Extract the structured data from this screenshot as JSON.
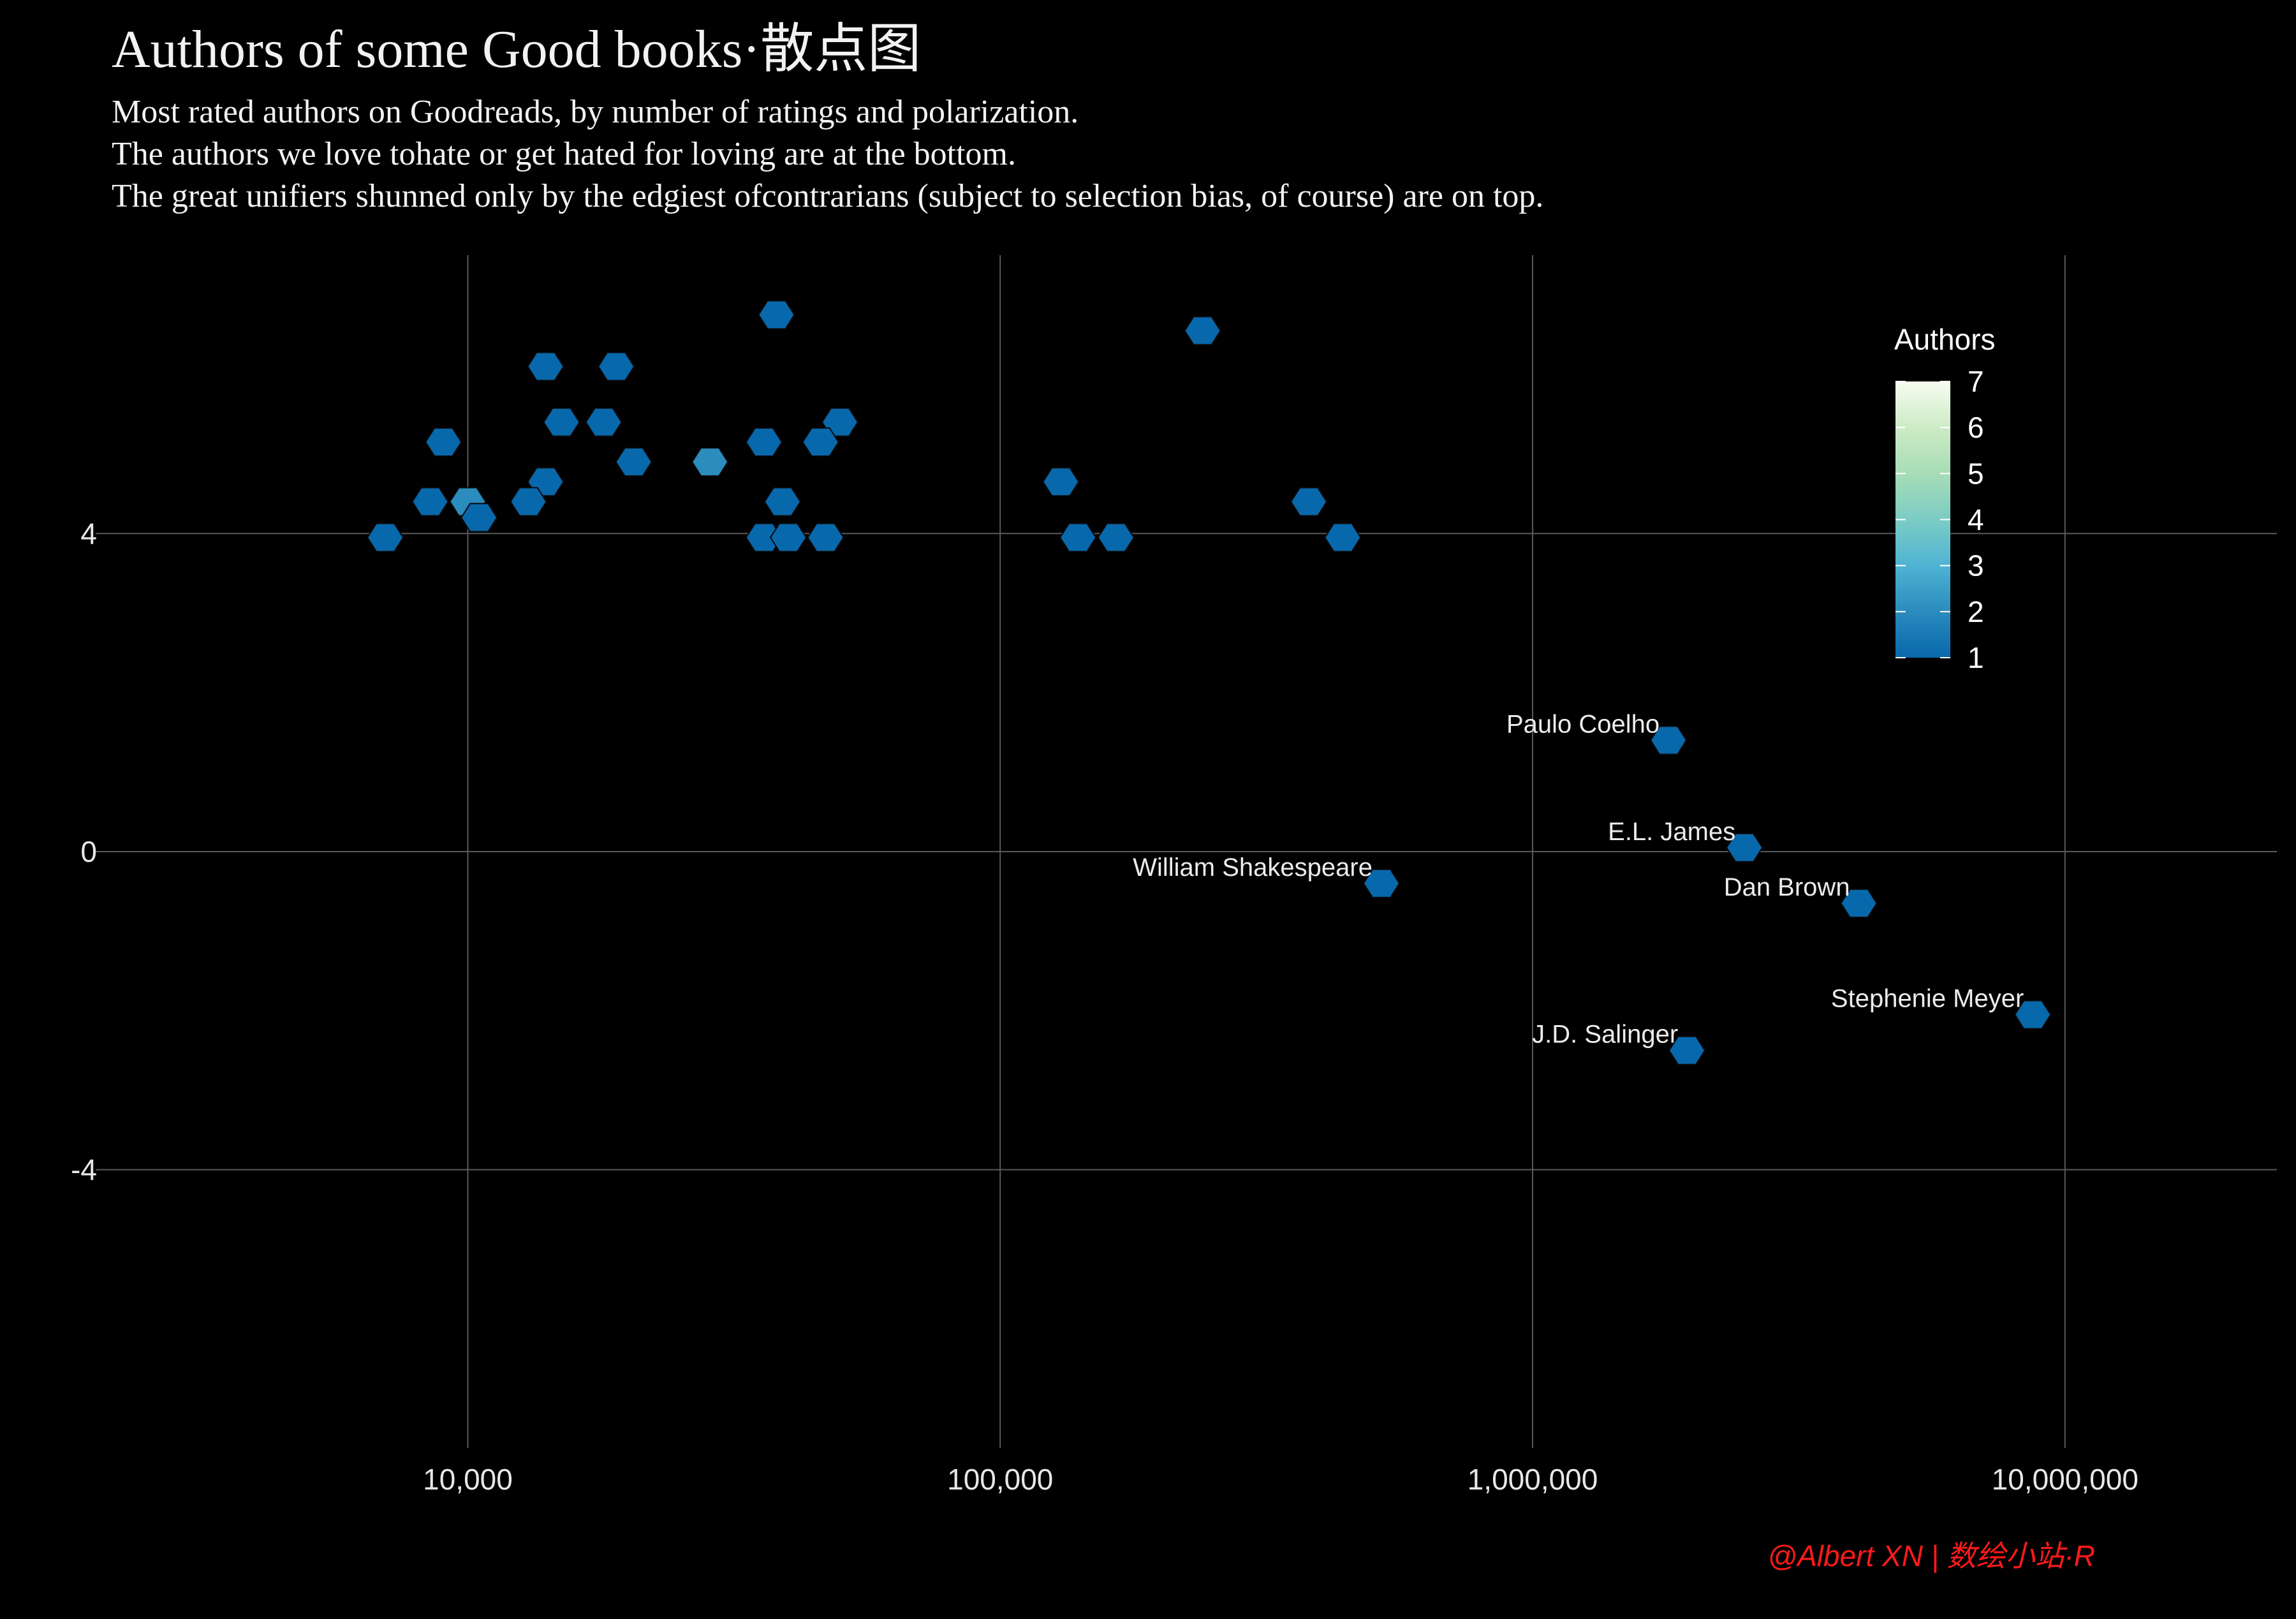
{
  "chart_data": {
    "type": "hexbin",
    "title": "Authors of some Good books·散点图",
    "subtitle": [
      "Most rated authors on Goodreads, by number of ratings and polarization.",
      "The authors we love tohate or get hated for loving are at the bottom.",
      "The great unifiers shunned only by the edgiest ofcontrarians (subject to selection bias, of course) are on top."
    ],
    "x_scale": "log10",
    "xlim": [
      2000,
      25000000
    ],
    "ylim": [
      -7.5,
      7.5
    ],
    "x_ticks": [
      10000,
      100000,
      1000000,
      10000000
    ],
    "x_tick_labels": [
      "10,000",
      "100,000",
      "1,000,000",
      "10,000,000"
    ],
    "y_ticks": [
      4,
      0,
      -4
    ],
    "y_tick_labels": [
      "4",
      "0",
      "-4"
    ],
    "grid": true,
    "legend": {
      "title": "Authors",
      "position": "top-right",
      "min": 1,
      "max": 7,
      "labels": [
        "7",
        "6",
        "5",
        "4",
        "3",
        "2",
        "1"
      ],
      "colors": [
        "#0868ac",
        "#2b8cbe",
        "#4eb3d3",
        "#7bccc4",
        "#a8ddb5",
        "#ccebc5",
        "#f7fcf0"
      ]
    },
    "annotations": [
      {
        "label": "Paulo Coelho",
        "x": 1800000,
        "y": 1.4
      },
      {
        "label": "E.L. James",
        "x": 2500000,
        "y": 0.05
      },
      {
        "label": "William Shakespeare",
        "x": 520000,
        "y": -0.4
      },
      {
        "label": "Dan Brown",
        "x": 4100000,
        "y": -0.65
      },
      {
        "label": "Stephenie Meyer",
        "x": 8700000,
        "y": -2.05
      },
      {
        "label": "J.D. Salinger",
        "x": 1950000,
        "y": -2.5
      }
    ],
    "bins": [
      {
        "x": 38000,
        "y": 6.75,
        "n": 1
      },
      {
        "x": 240000,
        "y": 6.55,
        "n": 1
      },
      {
        "x": 14000,
        "y": 6.1,
        "n": 1
      },
      {
        "x": 19000,
        "y": 6.1,
        "n": 1
      },
      {
        "x": 15000,
        "y": 5.4,
        "n": 1
      },
      {
        "x": 18000,
        "y": 5.4,
        "n": 1
      },
      {
        "x": 50000,
        "y": 5.4,
        "n": 1
      },
      {
        "x": 9000,
        "y": 5.15,
        "n": 1
      },
      {
        "x": 36000,
        "y": 5.15,
        "n": 1
      },
      {
        "x": 46000,
        "y": 5.15,
        "n": 1
      },
      {
        "x": 20500,
        "y": 4.9,
        "n": 1
      },
      {
        "x": 28500,
        "y": 4.9,
        "n": 2
      },
      {
        "x": 14000,
        "y": 4.65,
        "n": 1
      },
      {
        "x": 130000,
        "y": 4.65,
        "n": 1
      },
      {
        "x": 8500,
        "y": 4.4,
        "n": 1
      },
      {
        "x": 10000,
        "y": 4.4,
        "n": 2
      },
      {
        "x": 13000,
        "y": 4.4,
        "n": 1
      },
      {
        "x": 39000,
        "y": 4.4,
        "n": 1
      },
      {
        "x": 380000,
        "y": 4.4,
        "n": 1
      },
      {
        "x": 10500,
        "y": 4.2,
        "n": 1
      },
      {
        "x": 7000,
        "y": 3.95,
        "n": 1
      },
      {
        "x": 36000,
        "y": 3.95,
        "n": 1
      },
      {
        "x": 40000,
        "y": 3.95,
        "n": 1
      },
      {
        "x": 47000,
        "y": 3.95,
        "n": 1
      },
      {
        "x": 140000,
        "y": 3.95,
        "n": 1
      },
      {
        "x": 165000,
        "y": 3.95,
        "n": 1
      },
      {
        "x": 440000,
        "y": 3.95,
        "n": 1
      }
    ]
  },
  "watermark": "@Albert XN | 数绘小站·R"
}
